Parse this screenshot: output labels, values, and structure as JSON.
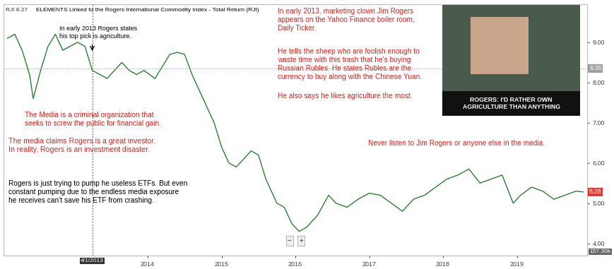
{
  "chart_data": {
    "type": "line",
    "title": "ELEMENTS Linked to the Rogers International Commodity Index - Total Return (RJI)",
    "subtitle": "RJI 8.27",
    "x": [
      2012.1,
      2012.2,
      2012.3,
      2012.4,
      2012.45,
      2012.55,
      2012.65,
      2012.75,
      2012.85,
      2012.95,
      2013.05,
      2013.15,
      2013.25,
      2013.35,
      2013.45,
      2013.55,
      2013.65,
      2013.75,
      2013.85,
      2013.95,
      2014.1,
      2014.2,
      2014.3,
      2014.4,
      2014.5,
      2014.6,
      2014.7,
      2014.8,
      2014.9,
      2015.0,
      2015.1,
      2015.2,
      2015.3,
      2015.4,
      2015.5,
      2015.6,
      2015.7,
      2015.75,
      2015.85,
      2015.95,
      2016.05,
      2016.15,
      2016.3,
      2016.45,
      2016.55,
      2016.7,
      2016.85,
      2017.0,
      2017.15,
      2017.3,
      2017.45,
      2017.6,
      2017.75,
      2017.9,
      2018.05,
      2018.2,
      2018.35,
      2018.5,
      2018.65,
      2018.8,
      2018.95,
      2019.05,
      2019.2,
      2019.35,
      2019.5,
      2019.65,
      2019.8,
      2019.9
    ],
    "values": [
      9.1,
      9.2,
      8.8,
      8.2,
      7.6,
      8.3,
      8.9,
      9.2,
      8.8,
      8.9,
      9.0,
      8.9,
      8.3,
      8.2,
      8.1,
      8.3,
      8.5,
      8.3,
      8.2,
      8.3,
      8.1,
      8.4,
      8.7,
      8.75,
      8.7,
      8.2,
      7.8,
      7.4,
      7.0,
      6.4,
      6.0,
      5.9,
      6.1,
      6.3,
      6.2,
      5.6,
      5.2,
      5.0,
      4.9,
      4.5,
      4.3,
      4.4,
      4.7,
      5.2,
      5.0,
      4.9,
      5.1,
      5.25,
      5.2,
      5.0,
      4.8,
      5.1,
      5.2,
      5.4,
      5.6,
      5.7,
      5.85,
      5.5,
      5.6,
      5.7,
      5.0,
      5.2,
      5.4,
      5.3,
      5.1,
      5.2,
      5.3,
      5.28
    ],
    "color": "#2e7d32",
    "xlim": [
      2012.05,
      2019.95
    ],
    "ylim": [
      3.7,
      9.95
    ],
    "xticks": [
      2014,
      2015,
      2016,
      2017,
      2018,
      2019
    ],
    "yticks": [
      {
        "value": 4,
        "label": "4.00"
      },
      {
        "value": 5,
        "label": "5.00"
      },
      {
        "value": 6,
        "label": "6.00"
      },
      {
        "value": 7,
        "label": "7.00"
      },
      {
        "value": 8,
        "label": "8.00"
      },
      {
        "value": 9,
        "label": "9.00"
      }
    ],
    "grid": false,
    "crosshair": {
      "x": {
        "value": 2013.25,
        "label": "4/1/2013"
      },
      "y": 8.35
    },
    "price_tags": [
      {
        "value": 8.35,
        "label": "8.35"
      },
      {
        "value": 5.28,
        "label": "5.28"
      }
    ],
    "volume_label": "157.30k",
    "controls": [
      "−",
      "+"
    ],
    "image_caption": "ROGERS: I'D RATHER OWN\nAGRICULTURE THAN ANYTHING",
    "annotations": [
      "In early 2013 Rogers states\nhis top pick is agriculture.",
      "The Media is a criminal organization that\nseeks to screw the public for financial gain.",
      "The media claims Rogers is a great investor.\nIn reality, Rogers is an investment disaster.",
      "Rogers is just trying to pump he useless ETFs. But even\nconstant pumping due to the endless media exposure\nhe receives can't save his ETF from crashing.",
      "In early 2013, marketing clown Jim Rogers\nappears on the Yahoo Finance boiler room,\nDaily Ticker.",
      "He tells the sheep who are foolish enough to\nwaste time with this trash that he's buying\nRussian Rubles. He states Rubles are the\ncurrency to buy along with the Chinese Yuan.",
      "He also says he likes agriculture the most.",
      "Never listen to Jim Rogers or anyone else in the media."
    ]
  }
}
